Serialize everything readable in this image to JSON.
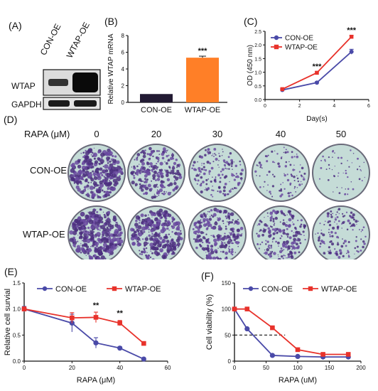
{
  "panels": {
    "A": {
      "letter": "(A)",
      "lanes": [
        "CON-OE",
        "WTAP-OE"
      ],
      "proteins": [
        "WTAP",
        "GAPDH"
      ]
    },
    "B": {
      "letter": "(B)",
      "chart_data": {
        "type": "bar",
        "categories": [
          "CON-OE",
          "WTAP-OE"
        ],
        "values": [
          1.0,
          5.35
        ],
        "errors": [
          0.0,
          0.18
        ],
        "colors": [
          "#221a33",
          "#ff7f27"
        ],
        "ylabel": "Relative WTAP mRNA",
        "ylim": [
          0,
          8
        ],
        "yticks": [
          "0",
          "2",
          "4",
          "6",
          "8"
        ],
        "annotation": "***"
      }
    },
    "C": {
      "letter": "(C)",
      "chart_data": {
        "type": "line",
        "xlabel": "Day(s)",
        "ylabel": "OD (450 nm)",
        "xlim": [
          0,
          6
        ],
        "ylim": [
          0,
          2.5
        ],
        "xticks": [
          "0",
          "2",
          "4",
          "6"
        ],
        "yticks": [
          "0.0",
          "0.5",
          "1.0",
          "1.5",
          "2.0",
          "2.5"
        ],
        "series": [
          {
            "name": "CON-OE",
            "color": "#4a4aa8",
            "marker": "circle",
            "x": [
              1,
              3,
              5
            ],
            "y": [
              0.35,
              0.62,
              1.75
            ],
            "err": [
              0.03,
              0.03,
              0.09
            ]
          },
          {
            "name": "WTAP-OE",
            "color": "#e8322b",
            "marker": "square",
            "x": [
              1,
              3,
              5
            ],
            "y": [
              0.38,
              0.98,
              2.3
            ],
            "err": [
              0.03,
              0.04,
              0.05
            ]
          }
        ],
        "annotations": [
          {
            "x": 3,
            "text": "***"
          },
          {
            "x": 5,
            "text": "***"
          }
        ]
      }
    },
    "D": {
      "letter": "(D)",
      "header_label": "RAPA (μM)",
      "concentrations": [
        "0",
        "20",
        "30",
        "40",
        "50"
      ],
      "rows": [
        "CON-OE",
        "WTAP-OE"
      ],
      "dish_density": [
        [
          0.9,
          0.6,
          0.35,
          0.18,
          0.04
        ],
        [
          0.95,
          0.8,
          0.6,
          0.5,
          0.3
        ]
      ]
    },
    "E": {
      "letter": "(E)",
      "chart_data": {
        "type": "line",
        "xlabel": "RAPA (μM)",
        "ylabel": "Relative cell survial",
        "xlim": [
          0,
          60
        ],
        "ylim": [
          0,
          1.5
        ],
        "xticks": [
          "0",
          "20",
          "40",
          "60"
        ],
        "yticks": [
          "0.0",
          "0.5",
          "1.0",
          "1.5"
        ],
        "series": [
          {
            "name": "CON-OE",
            "color": "#4a4aa8",
            "marker": "circle",
            "x": [
              0,
              20,
              30,
              40,
              50
            ],
            "y": [
              1.0,
              0.73,
              0.35,
              0.25,
              0.04
            ],
            "err": [
              0.05,
              0.17,
              0.1,
              0.03,
              0.02
            ]
          },
          {
            "name": "WTAP-OE",
            "color": "#e8322b",
            "marker": "square",
            "x": [
              0,
              20,
              30,
              40,
              50
            ],
            "y": [
              1.0,
              0.83,
              0.84,
              0.73,
              0.34
            ],
            "err": [
              0.04,
              0.1,
              0.1,
              0.05,
              0.03
            ]
          }
        ],
        "annotations": [
          {
            "x": 30,
            "y": 1.02,
            "text": "**"
          },
          {
            "x": 40,
            "y": 0.87,
            "text": "**"
          }
        ]
      }
    },
    "F": {
      "letter": "(F)",
      "chart_data": {
        "type": "line",
        "xlabel": "RAPA (uM)",
        "ylabel": "Cell viability (%)",
        "xlim": [
          0,
          200
        ],
        "ylim": [
          0,
          150
        ],
        "xticks": [
          "0",
          "50",
          "100",
          "150",
          "200"
        ],
        "yticks": [
          "0",
          "50",
          "100",
          "150"
        ],
        "series": [
          {
            "name": "CON-OE",
            "color": "#4a4aa8",
            "marker": "circle",
            "x": [
              0,
              20,
              60,
              100,
              140,
              180
            ],
            "y": [
              100,
              62,
              11,
              9,
              8,
              8
            ]
          },
          {
            "name": "WTAP-OE",
            "color": "#e8322b",
            "marker": "square",
            "x": [
              0,
              20,
              60,
              100,
              140,
              180
            ],
            "y": [
              100,
              100,
              64,
              22,
              13,
              13
            ]
          }
        ],
        "dashed_y": 50,
        "dashed_x_end": 80
      }
    }
  }
}
